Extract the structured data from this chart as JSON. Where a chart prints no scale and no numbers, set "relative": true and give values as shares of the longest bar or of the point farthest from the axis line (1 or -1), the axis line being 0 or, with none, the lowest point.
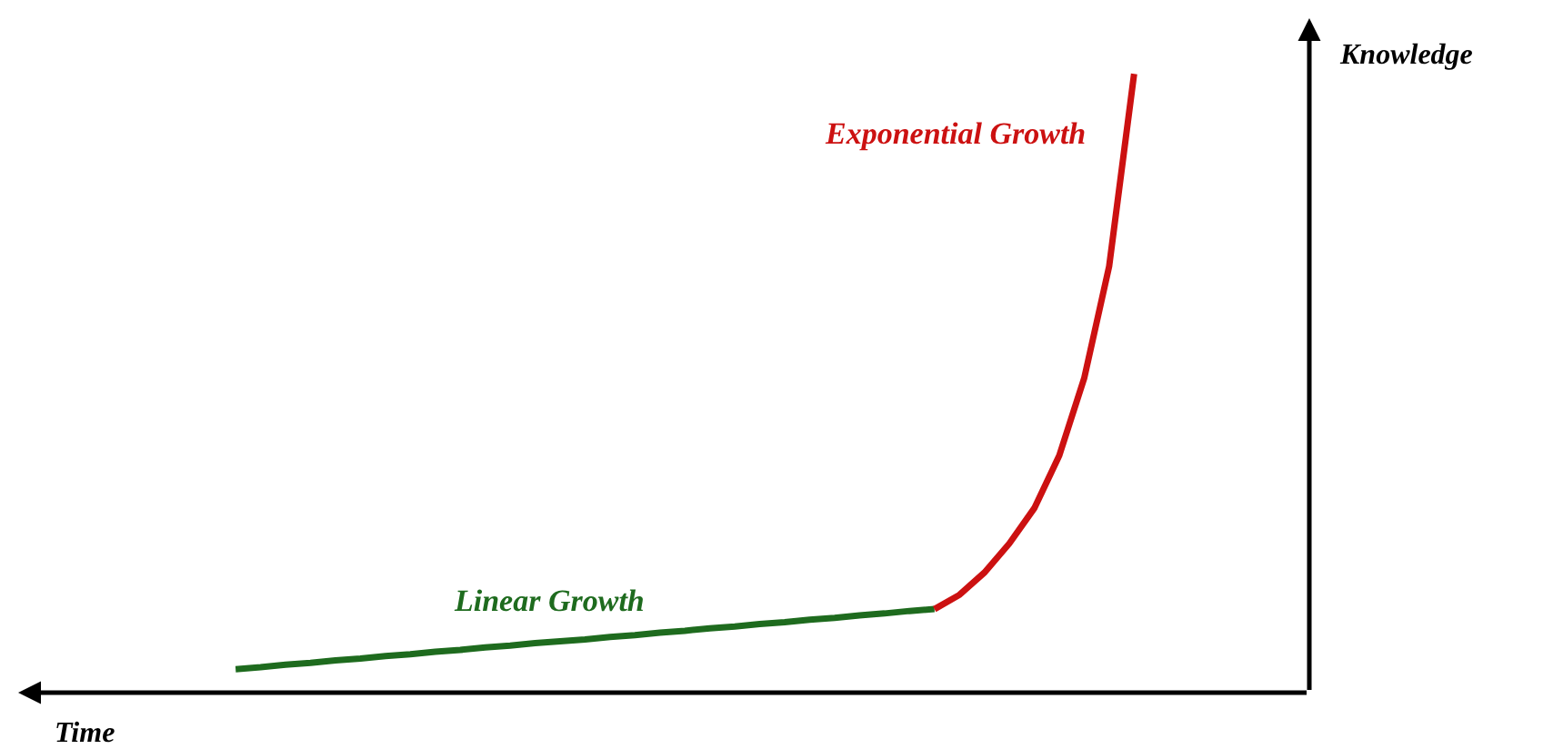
{
  "chart_data": {
    "type": "line",
    "relative": true,
    "xlabel": "Time",
    "annotations": [
      "Knowledge"
    ],
    "legend": false,
    "marker": "none",
    "line_style": "solid",
    "categories": [
      null,
      null,
      null,
      null,
      null,
      null,
      null,
      null,
      null,
      null,
      null,
      null,
      null,
      null,
      null,
      null,
      null,
      null,
      null,
      null,
      null,
      null,
      null,
      null,
      null,
      null,
      null,
      null,
      null,
      null,
      null,
      null,
      null,
      null,
      null,
      null,
      null
    ],
    "series": [
      {
        "name": "Linear Growth",
        "color": "#1e6b1e",
        "values": [
          0.038,
          0.041,
          0.045,
          0.048,
          0.052,
          0.055,
          0.059,
          0.062,
          0.066,
          0.069,
          0.073,
          0.076,
          0.08,
          0.083,
          0.086,
          0.09,
          0.093,
          0.097,
          0.1,
          0.104,
          0.107,
          0.111,
          0.114,
          0.118,
          0.121,
          0.125,
          0.128,
          0.132,
          0.135,
          null,
          null,
          null,
          null,
          null,
          null,
          null,
          null
        ]
      },
      {
        "name": "Exponential Growth",
        "color": "#cc1111",
        "values": [
          null,
          null,
          null,
          null,
          null,
          null,
          null,
          null,
          null,
          null,
          null,
          null,
          null,
          null,
          null,
          null,
          null,
          null,
          null,
          null,
          null,
          null,
          null,
          null,
          null,
          null,
          null,
          null,
          0.135,
          0.158,
          0.194,
          0.241,
          0.298,
          0.383,
          0.508,
          0.689,
          1
        ]
      }
    ]
  }
}
